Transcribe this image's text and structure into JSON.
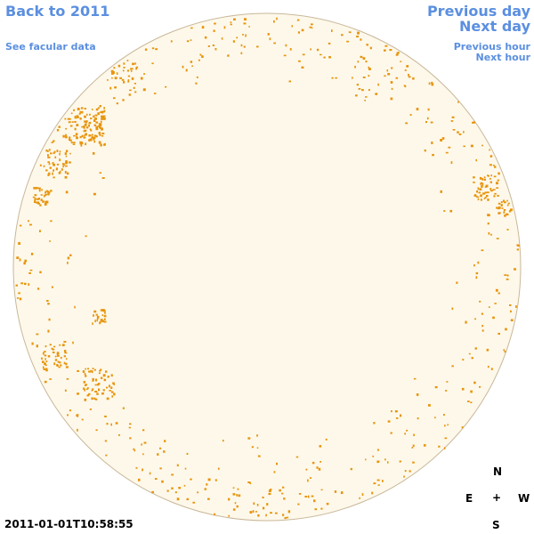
{
  "nav": {
    "back_label": "Back to 2011",
    "facular_label": "See facular data",
    "prev_day_label": "Previous day",
    "next_day_label": "Next day",
    "prev_hour_label": "Previous hour",
    "next_hour_label": "Next hour"
  },
  "timestamp": "2011-01-01T10:58:55",
  "compass": {
    "n": "N",
    "e": "E",
    "center": "+",
    "w": "W",
    "s": "S"
  },
  "colors": {
    "disk_fill": "#fdf8ea",
    "disk_stroke": "#c9b89a",
    "faculae": "#e8940c",
    "link": "#5b8fe0"
  }
}
